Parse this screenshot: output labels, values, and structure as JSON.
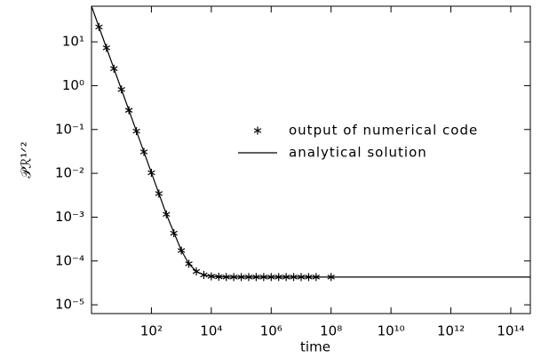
{
  "chart_data": {
    "type": "scatter-line",
    "xlabel": "time",
    "ylabel": "𝒫ℛ¹ᐟ²",
    "xscale": "log",
    "yscale": "log",
    "xlim": [
      1,
      450000000000000
    ],
    "ylim": [
      6.3e-06,
      65
    ],
    "xticks": [
      {
        "value": 100,
        "label": "10²"
      },
      {
        "value": 10000,
        "label": "10⁴"
      },
      {
        "value": 1000000,
        "label": "10⁶"
      },
      {
        "value": 100000000,
        "label": "10⁸"
      },
      {
        "value": 10000000000,
        "label": "10¹⁰"
      },
      {
        "value": 1000000000000,
        "label": "10¹²"
      },
      {
        "value": 100000000000000,
        "label": "10¹⁴"
      }
    ],
    "yticks": [
      {
        "value": 1e-05,
        "label": "10⁻⁵"
      },
      {
        "value": 0.0001,
        "label": "10⁻⁴"
      },
      {
        "value": 0.001,
        "label": "10⁻³"
      },
      {
        "value": 0.01,
        "label": "10⁻²"
      },
      {
        "value": 0.1,
        "label": "10⁻¹"
      },
      {
        "value": 1,
        "label": "10⁰"
      },
      {
        "value": 10,
        "label": "10¹"
      }
    ],
    "legend": "right",
    "series": [
      {
        "name": "output of numerical code",
        "marker": "asterisk",
        "color": "#000000",
        "x": [
          1.778,
          3.162,
          5.623,
          10,
          17.78,
          31.62,
          56.23,
          100,
          177.8,
          316.2,
          562.3,
          1000,
          1778,
          3162,
          5623,
          10000,
          17783,
          31623,
          56234,
          100000,
          177828,
          316228,
          562341,
          1000000,
          1778279,
          3162278,
          5623413,
          10000000,
          17782794,
          31622777,
          100000000
        ],
        "values": [
          21.8,
          7.29,
          2.44,
          0.818,
          0.274,
          0.0918,
          0.0308,
          0.0103,
          0.00345,
          0.00116,
          0.00043,
          0.000173,
          8.65e-05,
          5.76e-05,
          4.79e-05,
          4.46e-05,
          4.36e-05,
          4.3e-05,
          4.3e-05,
          4.3e-05,
          4.3e-05,
          4.3e-05,
          4.3e-05,
          4.3e-05,
          4.3e-05,
          4.3e-05,
          4.3e-05,
          4.3e-05,
          4.3e-05,
          4.3e-05,
          4.3e-05
        ]
      },
      {
        "name": "analytical solution",
        "marker": "line",
        "color": "#000000",
        "x": [
          1,
          3.162,
          10,
          31.62,
          100,
          316.2,
          1000,
          1778,
          3162,
          5623,
          10000,
          31623,
          100000,
          450000000000000
        ],
        "values": [
          65,
          7.29,
          0.818,
          0.0918,
          0.0103,
          0.00116,
          0.000173,
          8.65e-05,
          5.76e-05,
          4.79e-05,
          4.46e-05,
          4.3e-05,
          4.3e-05,
          4.3e-05
        ]
      }
    ]
  }
}
